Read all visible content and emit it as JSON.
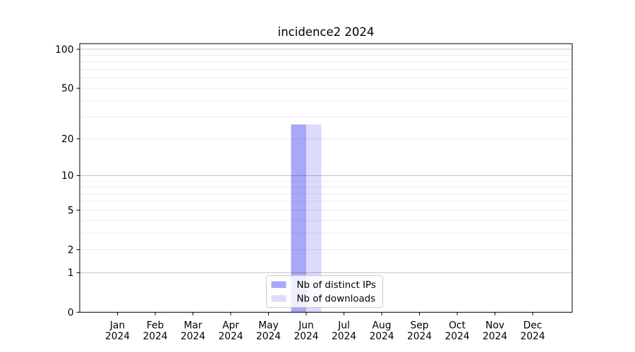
{
  "chart_data": {
    "type": "bar",
    "title": "incidence2 2024",
    "months": [
      "Jan",
      "Feb",
      "Mar",
      "Apr",
      "May",
      "Jun",
      "Jul",
      "Aug",
      "Sep",
      "Oct",
      "Nov",
      "Dec"
    ],
    "year_label": "2024",
    "series": [
      {
        "name": "Nb of distinct IPs",
        "color": "#0000e6",
        "fill_opacity": 0.34,
        "color_as_seen": "#a9a9f4",
        "values": [
          0,
          0,
          0,
          0,
          0,
          26,
          0,
          0,
          0,
          0,
          0,
          0
        ]
      },
      {
        "name": "Nb of downloads",
        "color": "#0000e6",
        "fill_opacity": 0.14,
        "color_as_seen": "#dcdcf8",
        "values": [
          0,
          0,
          0,
          0,
          0,
          26,
          0,
          0,
          0,
          0,
          0,
          0
        ]
      }
    ],
    "yscale": "log1p",
    "yticks": [
      0,
      1,
      2,
      5,
      10,
      20,
      50,
      100
    ],
    "ytick_labels": [
      "0",
      "1",
      "2",
      "5",
      "10",
      "20",
      "50",
      "100"
    ],
    "ylim": [
      0,
      110
    ],
    "grid": true,
    "gridline_major_values": [
      1,
      10,
      100
    ],
    "gridline_minor_values": [
      2,
      3,
      4,
      5,
      6,
      7,
      8,
      9,
      20,
      30,
      40,
      50,
      60,
      70,
      80,
      90
    ],
    "legend": {
      "position": "lower center",
      "entries": [
        "Nb of distinct IPs",
        "Nb of downloads"
      ]
    },
    "colors": {
      "axis": "#000000",
      "grid_major": "#c3c3c3",
      "grid_minor": "#ebebeb",
      "legend_border": "#cccccc",
      "legend_background": "#ffffff"
    }
  }
}
